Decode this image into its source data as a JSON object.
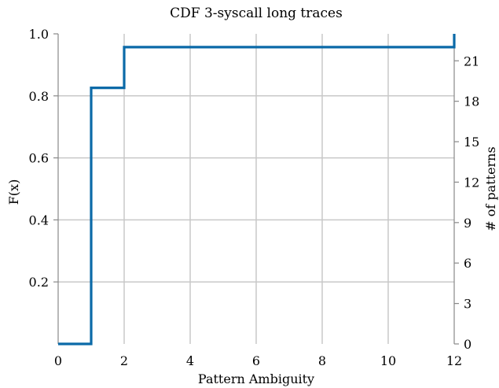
{
  "chart_data": {
    "type": "line",
    "step": true,
    "title": "CDF 3-syscall long traces",
    "xlabel": "Pattern Ambiguity",
    "ylabel": "F(x)",
    "y2label": "# of patterns",
    "xlim": [
      0,
      12
    ],
    "ylim": [
      0,
      1.0
    ],
    "y2lim": [
      0,
      23
    ],
    "xticks": [
      "0",
      "2",
      "4",
      "6",
      "8",
      "10",
      "12"
    ],
    "yticks": [
      "0.2",
      "0.4",
      "0.6",
      "0.8",
      "1.0"
    ],
    "y2ticks": [
      "0",
      "3",
      "6",
      "9",
      "12",
      "15",
      "18",
      "21"
    ],
    "grid": true,
    "line_color": "#0b6aa8",
    "series": [
      {
        "x": [
          0,
          1,
          1,
          2,
          2,
          12,
          12
        ],
        "y": [
          0,
          0,
          0.826,
          0.826,
          0.957,
          0.957,
          1.0
        ]
      }
    ]
  }
}
